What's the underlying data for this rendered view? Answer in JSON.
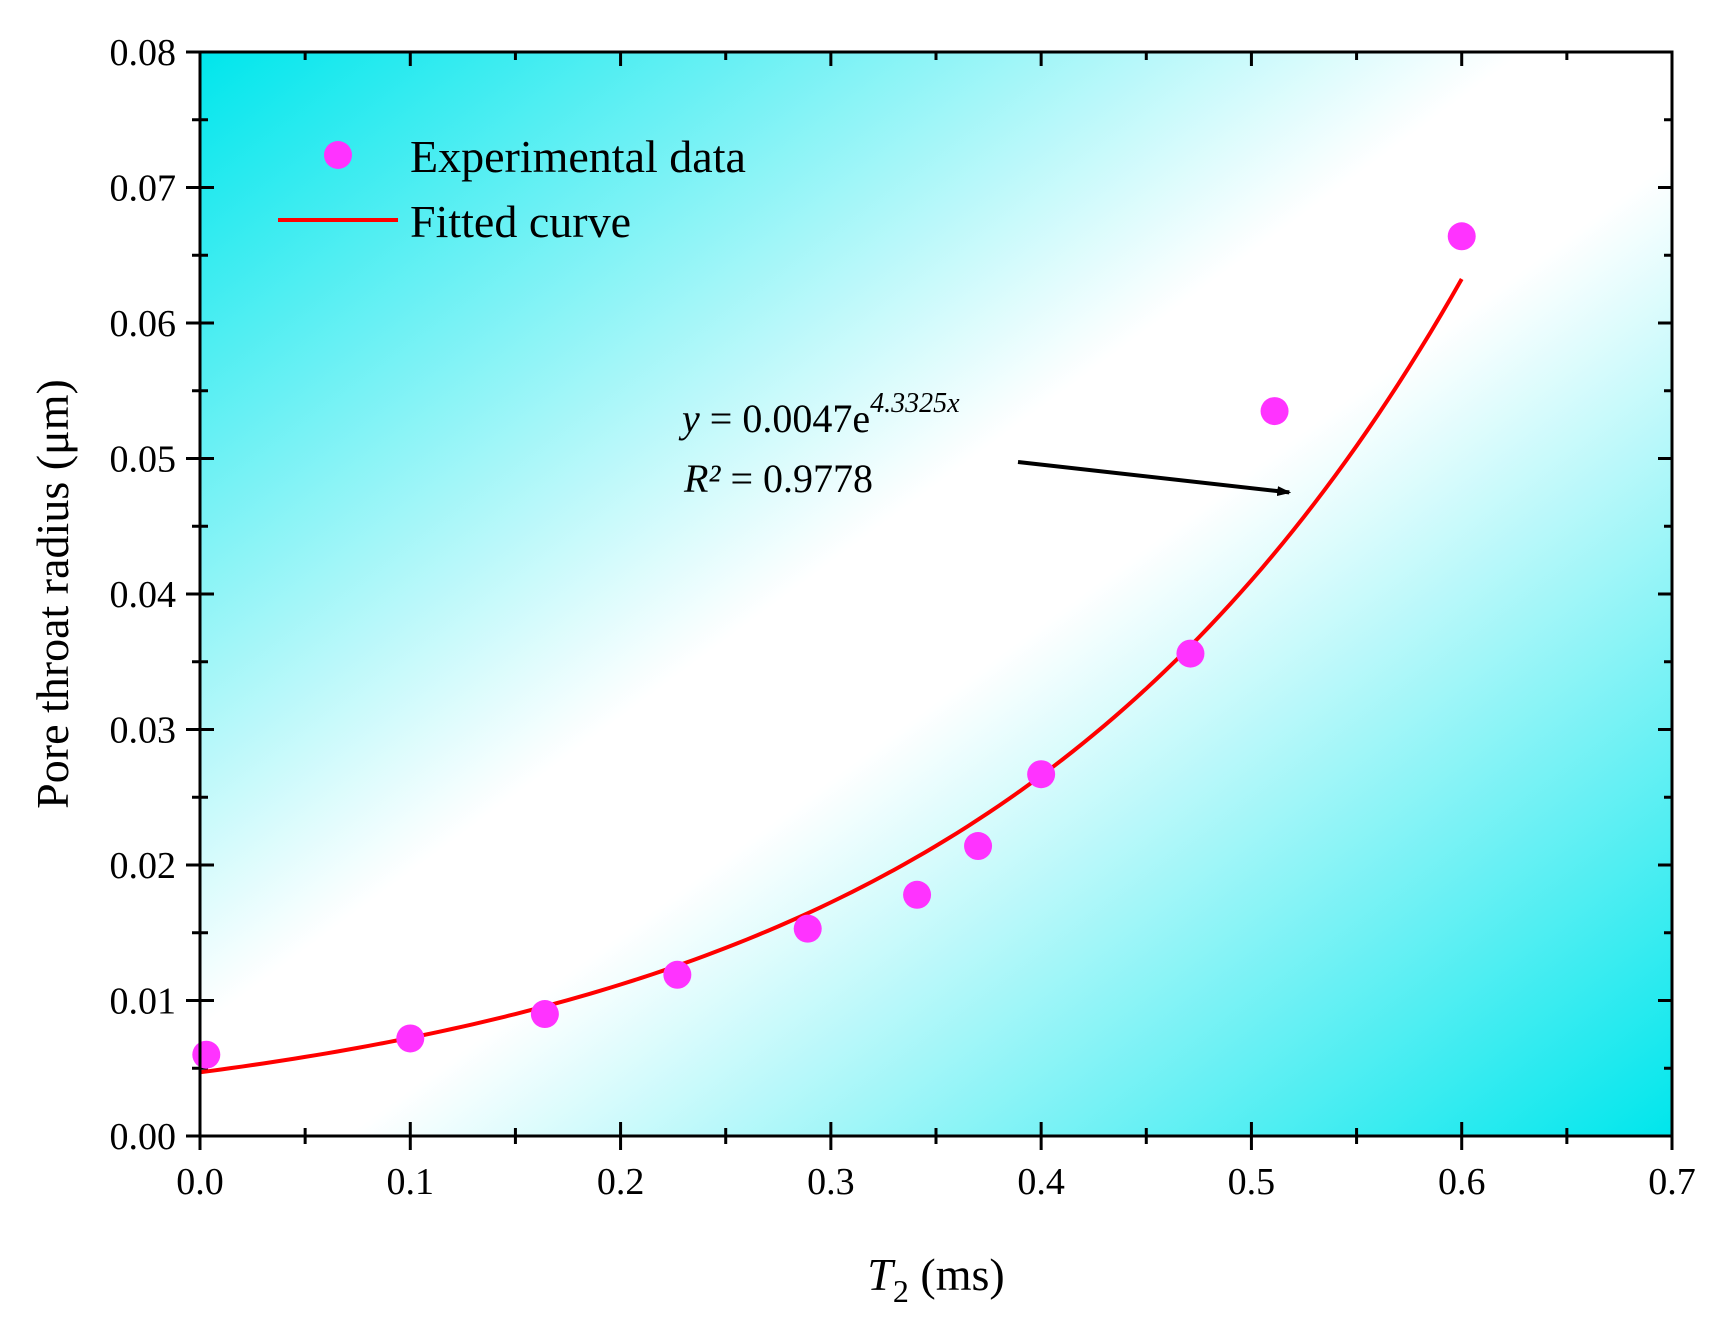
{
  "chart_data": {
    "type": "scatter",
    "title": "",
    "xlabel": {
      "main": "T",
      "sub": "2",
      "unit": " (ms)"
    },
    "ylabel": "Pore throat radius (μm)",
    "xlim": [
      0.0,
      0.7
    ],
    "ylim": [
      0.0,
      0.08
    ],
    "x_ticks": [
      0.0,
      0.1,
      0.2,
      0.3,
      0.4,
      0.5,
      0.6,
      0.7
    ],
    "x_tick_labels": [
      "0.0",
      "0.1",
      "0.2",
      "0.3",
      "0.4",
      "0.5",
      "0.6",
      "0.7"
    ],
    "y_ticks": [
      0.0,
      0.01,
      0.02,
      0.03,
      0.04,
      0.05,
      0.06,
      0.07,
      0.08
    ],
    "y_tick_labels": [
      "0.00",
      "0.01",
      "0.02",
      "0.03",
      "0.04",
      "0.05",
      "0.06",
      "0.07",
      "0.08"
    ],
    "grid": false,
    "legend_position": "top-left",
    "series": [
      {
        "name": "Experimental data",
        "kind": "scatter",
        "color": "#ff33ff",
        "x": [
          0.003,
          0.1,
          0.164,
          0.227,
          0.289,
          0.341,
          0.37,
          0.4,
          0.471,
          0.511,
          0.6
        ],
        "y": [
          0.006,
          0.0072,
          0.009,
          0.0119,
          0.0153,
          0.0178,
          0.0214,
          0.0267,
          0.0356,
          0.0535,
          0.0664
        ]
      },
      {
        "name": "Fitted curve",
        "kind": "line",
        "color": "#ff0000",
        "model": {
          "a": 0.0047,
          "b": 4.3325
        },
        "x_range": [
          0.0,
          0.6
        ]
      }
    ],
    "annotation": {
      "equation_var": "y",
      "equation_body": " = 0.0047e",
      "equation_exp": "4.3325x",
      "r2_var": "R²",
      "r2_value": " = 0.9778",
      "arrow_to": {
        "x": 0.518,
        "y": 0.0475
      }
    },
    "background": {
      "edge_color": "#00e6ec",
      "center_color": "#ffffff"
    }
  }
}
